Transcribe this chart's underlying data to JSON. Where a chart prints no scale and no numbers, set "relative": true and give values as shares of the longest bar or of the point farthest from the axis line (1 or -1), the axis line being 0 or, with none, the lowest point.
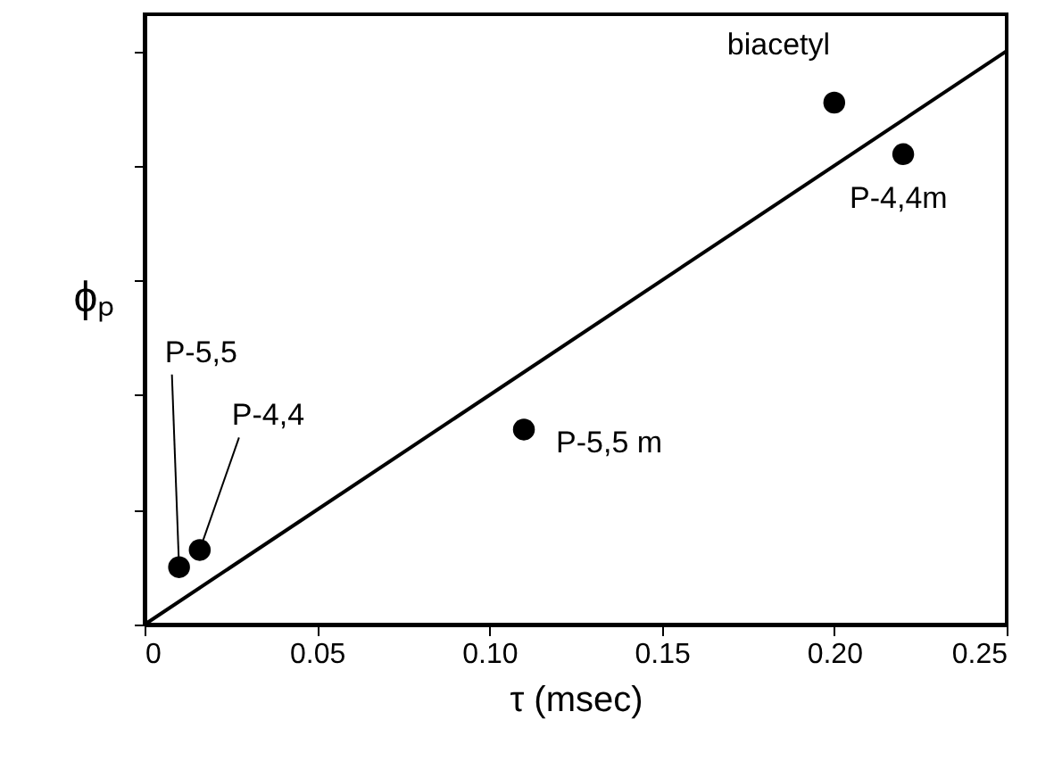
{
  "chart_data": {
    "type": "scatter",
    "relative": true,
    "xlabel": "τ (msec)",
    "ylabel": "ϕₚ",
    "xlim": [
      0,
      0.25
    ],
    "xticks": [
      0,
      {
        "value": 0.05,
        "label": "0.05"
      },
      {
        "value": 0.1,
        "label": "0.10"
      },
      {
        "value": 0.15,
        "label": "0.15"
      },
      {
        "value": 0.2,
        "label": "0.20"
      },
      {
        "value": 0.25,
        "label": "0.25"
      }
    ],
    "marker": "circle",
    "grid": false,
    "legend": false,
    "series": [
      {
        "color": "#000000",
        "x": [
          0.01,
          0.016,
          0.11,
          0.2,
          0.22
        ],
        "values": [
          0.1,
          0.13,
          0.34,
          0.91,
          0.82
        ]
      },
      {
        "type": "line",
        "color": "#000000",
        "marker": "none",
        "line_style": "solid",
        "x": [
          0,
          0.25
        ],
        "values": [
          0,
          1
        ]
      }
    ],
    "annotations": [
      {
        "text": "P-5,5",
        "x": 0.01,
        "y": 0.1
      },
      {
        "text": "P-4,4",
        "x": 0.016,
        "y": 0.13
      },
      {
        "text": "P-5,5 m",
        "x": 0.11,
        "y": 0.34
      },
      {
        "text": "biacetyl",
        "x": 0.2,
        "y": 0.91
      },
      {
        "text": "P-4,4m",
        "x": 0.22,
        "y": 0.82
      }
    ]
  }
}
